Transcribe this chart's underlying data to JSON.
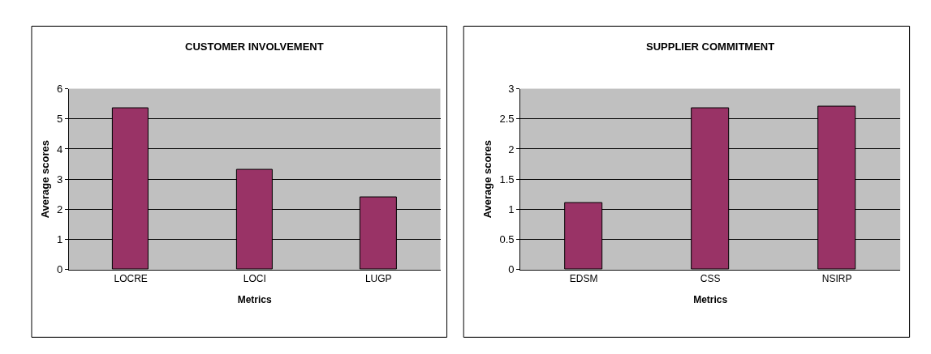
{
  "chart_data": [
    {
      "type": "bar",
      "title": "CUSTOMER INVOLVEMENT",
      "xlabel": "Metrics",
      "ylabel": "Average scores",
      "categories": [
        "LOCRE",
        "LOCI",
        "LUGP"
      ],
      "values": [
        5.35,
        3.3,
        2.4
      ],
      "color": "#993366",
      "ylim": [
        0,
        6
      ],
      "yticks": [
        0,
        1,
        2,
        3,
        4,
        5,
        6
      ],
      "grid": "y"
    },
    {
      "type": "bar",
      "title": "SUPPLIER COMMITMENT",
      "xlabel": "Metrics",
      "ylabel": "Average scores",
      "categories": [
        "EDSM",
        "CSS",
        "NSIRP"
      ],
      "values": [
        1.1,
        2.68,
        2.7
      ],
      "color": "#993366",
      "ylim": [
        0,
        3
      ],
      "yticks": [
        0,
        0.5,
        1,
        1.5,
        2,
        2.5,
        3
      ],
      "grid": "y"
    }
  ]
}
